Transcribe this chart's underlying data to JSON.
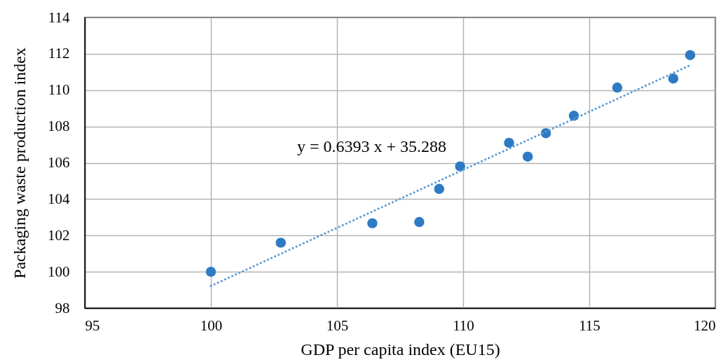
{
  "chart_data": {
    "type": "scatter",
    "xlabel": "GDP per capita index (EU15)",
    "ylabel": "Packaging waste production index",
    "xlim": [
      95,
      120
    ],
    "xticks": [
      95,
      100,
      105,
      110,
      115,
      120
    ],
    "ylim": [
      98,
      114
    ],
    "yticks": [
      98,
      100,
      102,
      104,
      106,
      108,
      110,
      112,
      114
    ],
    "grid": true,
    "marker": "circle",
    "series": [
      {
        "color": "#2e7bc4",
        "x": [
          100,
          102.77,
          106.4,
          108.26,
          109.05,
          109.88,
          111.82,
          112.56,
          113.28,
          114.39,
          116.11,
          118.33,
          119.0
        ],
        "values": [
          100.0,
          101.6,
          102.67,
          102.74,
          104.56,
          105.8,
          107.1,
          106.34,
          107.63,
          108.59,
          110.14,
          110.64,
          111.93
        ]
      },
      {
        "type": "line",
        "color": "#5b9bd5",
        "line_style": "dotted",
        "marker": "none",
        "x": [
          100,
          119
        ],
        "values": [
          99.22,
          111.37
        ]
      }
    ],
    "annotations": [
      "y = 0.6393 x + 35.288"
    ]
  }
}
